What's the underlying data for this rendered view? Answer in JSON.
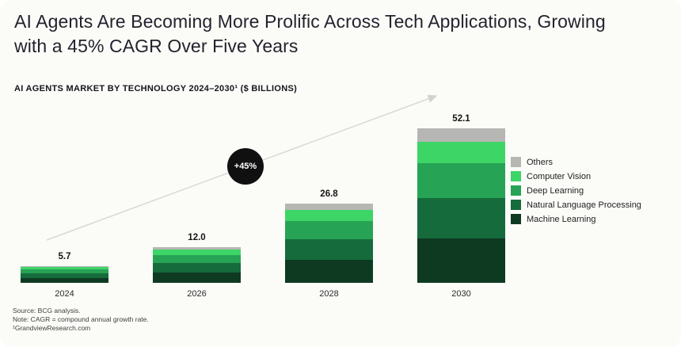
{
  "header": {
    "title": "AI Agents Are Becoming More Prolific Across Tech Applications, Growing with a 45% CAGR Over Five Years",
    "subtitle": "AI AGENTS MARKET BY TECHNOLOGY 2024–2030¹ ($ BILLIONS)"
  },
  "chart_data": {
    "type": "bar",
    "stacked": true,
    "title": "AI Agents Market by Technology 2024–2030 ($ Billions)",
    "categories": [
      "2024",
      "2026",
      "2028",
      "2030"
    ],
    "totals": [
      5.7,
      12.0,
      26.8,
      52.1
    ],
    "total_labels": [
      "5.7",
      "12.0",
      "26.8",
      "52.1"
    ],
    "series": [
      {
        "name": "Machine Learning",
        "color": "#0e3a22",
        "values": [
          1.7,
          3.5,
          7.8,
          15.0
        ]
      },
      {
        "name": "Natural Language Processing",
        "color": "#166b3c",
        "values": [
          1.5,
          3.2,
          7.0,
          13.5
        ]
      },
      {
        "name": "Deep Learning",
        "color": "#27a355",
        "values": [
          1.3,
          2.7,
          6.0,
          12.0
        ]
      },
      {
        "name": "Computer Vision",
        "color": "#3ed567",
        "values": [
          0.8,
          1.7,
          3.7,
          7.0
        ]
      },
      {
        "name": "Others",
        "color": "#b6b6b4",
        "values": [
          0.4,
          0.9,
          2.3,
          4.6
        ]
      }
    ],
    "legend": {
      "position": "right",
      "order_top_to_bottom": [
        "Others",
        "Computer Vision",
        "Deep Learning",
        "Natural Language Processing",
        "Machine Learning"
      ]
    },
    "annotation": {
      "cagr_badge": "+45%"
    },
    "grid": false,
    "xlabel": "",
    "ylabel": "",
    "ylim": [
      0,
      55
    ]
  },
  "footer": {
    "lines": [
      "Source: BCG analysis.",
      "Note: CAGR = compound annual growth rate.",
      "¹GrandviewResearch.com"
    ]
  }
}
